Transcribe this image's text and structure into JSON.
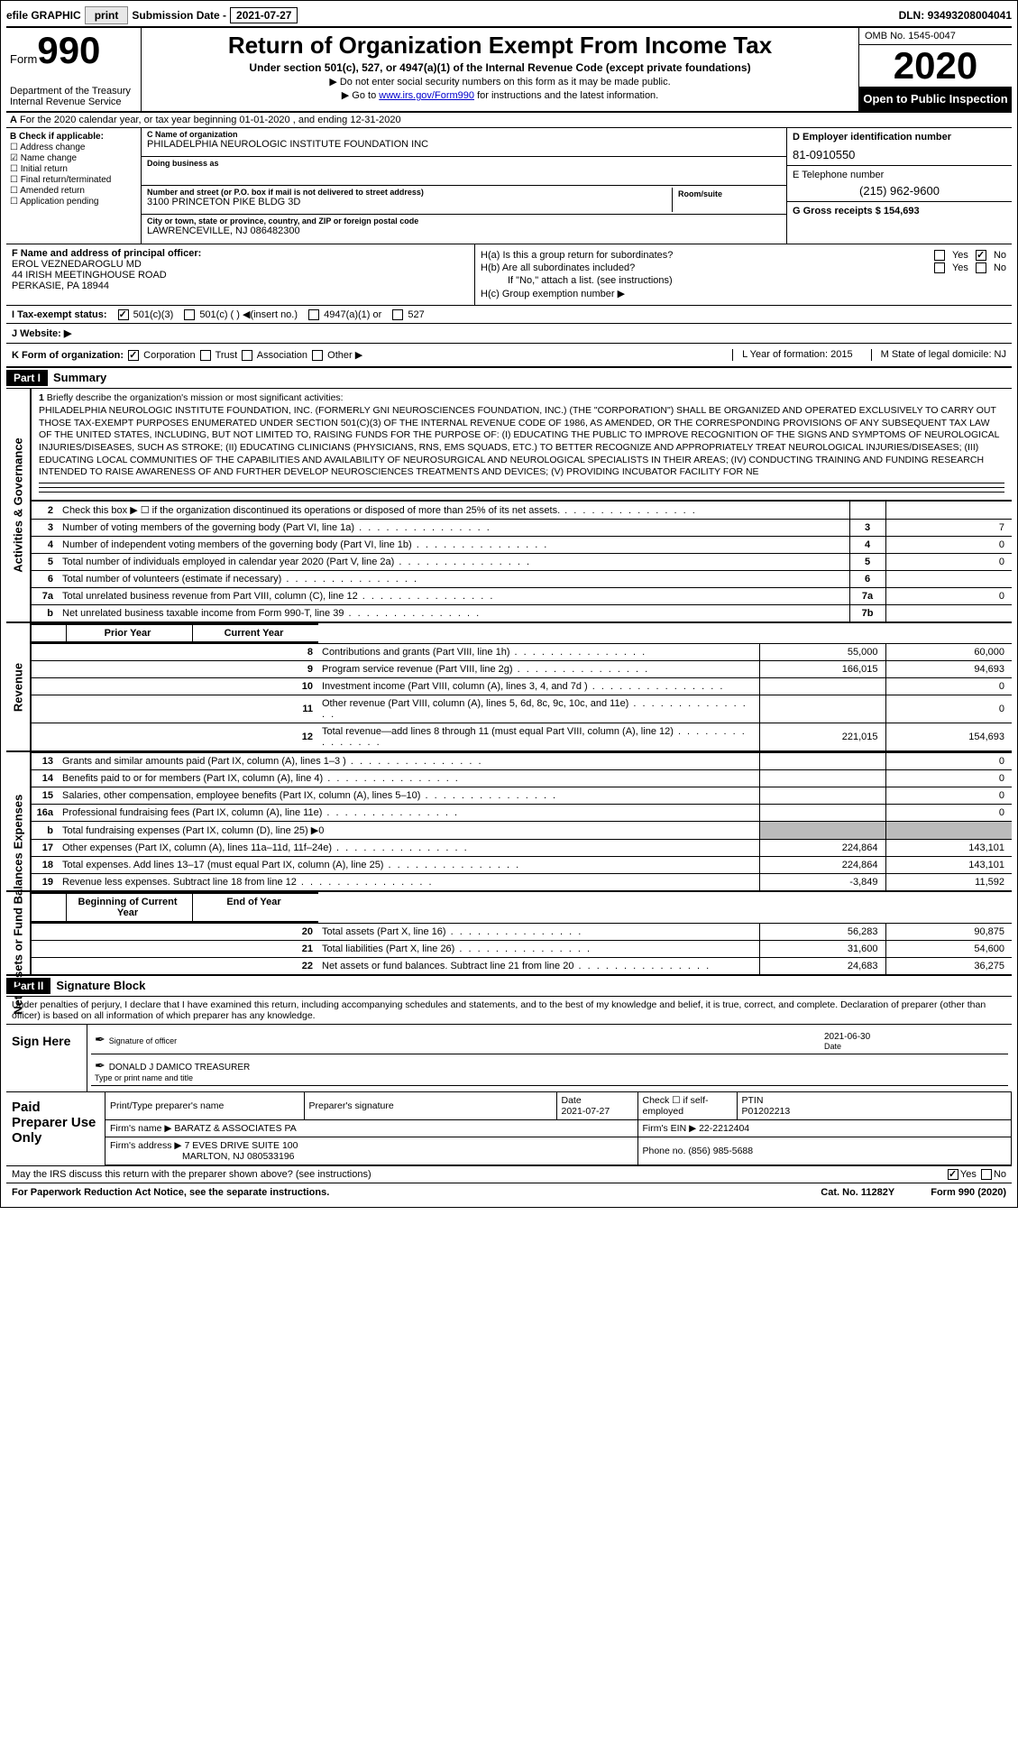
{
  "topbar": {
    "efile": "efile GRAPHIC",
    "print": "print",
    "submit_lbl": "Submission Date - ",
    "submit_date": "2021-07-27",
    "dln_lbl": "DLN: ",
    "dln": "93493208004041"
  },
  "header": {
    "form_word": "Form",
    "form_num": "990",
    "dept": "Department of the Treasury\nInternal Revenue Service",
    "title": "Return of Organization Exempt From Income Tax",
    "subtitle": "Under section 501(c), 527, or 4947(a)(1) of the Internal Revenue Code (except private foundations)",
    "note1": "▶ Do not enter social security numbers on this form as it may be made public.",
    "note2_pre": "▶ Go to ",
    "note2_link": "www.irs.gov/Form990",
    "note2_post": " for instructions and the latest information.",
    "omb": "OMB No. 1545-0047",
    "year": "2020",
    "inspection": "Open to Public Inspection"
  },
  "rowA": {
    "text": "For the 2020 calendar year, or tax year beginning 01-01-2020   , and ending 12-31-2020",
    "prefix": "A"
  },
  "checkif": {
    "label": "B Check if applicable:",
    "items": [
      "Address change",
      "Name change",
      "Initial return",
      "Final return/terminated",
      "Amended return",
      "Application pending"
    ],
    "checked": [
      false,
      true,
      false,
      false,
      false,
      false
    ]
  },
  "org": {
    "name_lbl": "C Name of organization",
    "name": "PHILADELPHIA NEUROLOGIC INSTITUTE FOUNDATION INC",
    "dba_lbl": "Doing business as",
    "dba": "",
    "addr_lbl": "Number and street (or P.O. box if mail is not delivered to street address)",
    "room_lbl": "Room/suite",
    "addr": "3100 PRINCETON PIKE BLDG 3D",
    "city_lbl": "City or town, state or province, country, and ZIP or foreign postal code",
    "city": "LAWRENCEVILLE, NJ  086482300"
  },
  "boxD": {
    "lbl": "D Employer identification number",
    "val": "81-0910550"
  },
  "boxE": {
    "lbl": "E Telephone number",
    "val": "(215) 962-9600"
  },
  "boxG": {
    "lbl": "G Gross receipts $ ",
    "val": "154,693"
  },
  "officer": {
    "lbl": "F  Name and address of principal officer:",
    "name": "EROL VEZNEDAROGLU MD",
    "addr1": "44 IRISH MEETINGHOUSE ROAD",
    "addr2": "PERKASIE, PA  18944"
  },
  "boxH": {
    "a": "H(a)  Is this a group return for subordinates?",
    "a_yes": "Yes",
    "a_no": "No",
    "a_checked": "no",
    "b": "H(b)  Are all subordinates included?",
    "b_yes": "Yes",
    "b_no": "No",
    "b_note": "If \"No,\" attach a list. (see instructions)",
    "c": "H(c)  Group exemption number ▶"
  },
  "tax": {
    "lbl": "I  Tax-exempt status:",
    "opts": [
      "501(c)(3)",
      "501(c) (  ) ◀(insert no.)",
      "4947(a)(1) or",
      "527"
    ],
    "checked": 0
  },
  "website": {
    "lbl": "J  Website: ▶"
  },
  "kform": {
    "lbl": "K Form of organization:",
    "opts": [
      "Corporation",
      "Trust",
      "Association",
      "Other ▶"
    ],
    "checked": 0,
    "L": "L Year of formation: 2015",
    "M": "M State of legal domicile: NJ"
  },
  "part1": {
    "label": "Part I",
    "title": "Summary"
  },
  "mission": {
    "num": "1",
    "lbl": "Briefly describe the organization's mission or most significant activities:",
    "text": "PHILADELPHIA NEUROLOGIC INSTITUTE FOUNDATION, INC. (FORMERLY GNI NEUROSCIENCES FOUNDATION, INC.) (THE \"CORPORATION\") SHALL BE ORGANIZED AND OPERATED EXCLUSIVELY TO CARRY OUT THOSE TAX-EXEMPT PURPOSES ENUMERATED UNDER SECTION 501(C)(3) OF THE INTERNAL REVENUE CODE OF 1986, AS AMENDED, OR THE CORRESPONDING PROVISIONS OF ANY SUBSEQUENT TAX LAW OF THE UNITED STATES, INCLUDING, BUT NOT LIMITED TO, RAISING FUNDS FOR THE PURPOSE OF: (I) EDUCATING THE PUBLIC TO IMPROVE RECOGNITION OF THE SIGNS AND SYMPTOMS OF NEUROLOGICAL INJURIES/DISEASES, SUCH AS STROKE; (II) EDUCATING CLINICIANS (PHYSICIANS, RNS, EMS SQUADS, ETC.) TO BETTER RECOGNIZE AND APPROPRIATELY TREAT NEUROLOGICAL INJURIES/DISEASES; (III) EDUCATING LOCAL COMMUNITIES OF THE CAPABILITIES AND AVAILABILITY OF NEUROSURGICAL AND NEUROLOGICAL SPECIALISTS IN THEIR AREAS; (IV) CONDUCTING TRAINING AND FUNDING RESEARCH INTENDED TO RAISE AWARENESS OF AND FURTHER DEVELOP NEUROSCIENCES TREATMENTS AND DEVICES; (V) PROVIDING INCUBATOR FACILITY FOR NE"
  },
  "summary_rows": [
    {
      "n": "2",
      "t": "Check this box ▶ ☐ if the organization discontinued its operations or disposed of more than 25% of its net assets.",
      "box": "",
      "v": ""
    },
    {
      "n": "3",
      "t": "Number of voting members of the governing body (Part VI, line 1a)",
      "box": "3",
      "v": "7"
    },
    {
      "n": "4",
      "t": "Number of independent voting members of the governing body (Part VI, line 1b)",
      "box": "4",
      "v": "0"
    },
    {
      "n": "5",
      "t": "Total number of individuals employed in calendar year 2020 (Part V, line 2a)",
      "box": "5",
      "v": "0"
    },
    {
      "n": "6",
      "t": "Total number of volunteers (estimate if necessary)",
      "box": "6",
      "v": ""
    },
    {
      "n": "7a",
      "t": "Total unrelated business revenue from Part VIII, column (C), line 12",
      "box": "7a",
      "v": "0"
    },
    {
      "n": "b",
      "t": "Net unrelated business taxable income from Form 990-T, line 39",
      "box": "7b",
      "v": ""
    }
  ],
  "revenue": {
    "hdr_prior": "Prior Year",
    "hdr_curr": "Current Year",
    "rows": [
      {
        "n": "8",
        "t": "Contributions and grants (Part VIII, line 1h)",
        "p": "55,000",
        "c": "60,000"
      },
      {
        "n": "9",
        "t": "Program service revenue (Part VIII, line 2g)",
        "p": "166,015",
        "c": "94,693"
      },
      {
        "n": "10",
        "t": "Investment income (Part VIII, column (A), lines 3, 4, and 7d )",
        "p": "",
        "c": "0"
      },
      {
        "n": "11",
        "t": "Other revenue (Part VIII, column (A), lines 5, 6d, 8c, 9c, 10c, and 11e)",
        "p": "",
        "c": "0"
      },
      {
        "n": "12",
        "t": "Total revenue—add lines 8 through 11 (must equal Part VIII, column (A), line 12)",
        "p": "221,015",
        "c": "154,693"
      }
    ]
  },
  "expenses": {
    "rows": [
      {
        "n": "13",
        "t": "Grants and similar amounts paid (Part IX, column (A), lines 1–3 )",
        "p": "",
        "c": "0"
      },
      {
        "n": "14",
        "t": "Benefits paid to or for members (Part IX, column (A), line 4)",
        "p": "",
        "c": "0"
      },
      {
        "n": "15",
        "t": "Salaries, other compensation, employee benefits (Part IX, column (A), lines 5–10)",
        "p": "",
        "c": "0"
      },
      {
        "n": "16a",
        "t": "Professional fundraising fees (Part IX, column (A), line 11e)",
        "p": "",
        "c": "0"
      },
      {
        "n": "b",
        "t": "Total fundraising expenses (Part IX, column (D), line 25) ▶0",
        "p": "grey",
        "c": "grey"
      },
      {
        "n": "17",
        "t": "Other expenses (Part IX, column (A), lines 11a–11d, 11f–24e)",
        "p": "224,864",
        "c": "143,101"
      },
      {
        "n": "18",
        "t": "Total expenses. Add lines 13–17 (must equal Part IX, column (A), line 25)",
        "p": "224,864",
        "c": "143,101"
      },
      {
        "n": "19",
        "t": "Revenue less expenses. Subtract line 18 from line 12",
        "p": "-3,849",
        "c": "11,592"
      }
    ]
  },
  "netassets": {
    "hdr_b": "Beginning of Current Year",
    "hdr_e": "End of Year",
    "rows": [
      {
        "n": "20",
        "t": "Total assets (Part X, line 16)",
        "p": "56,283",
        "c": "90,875"
      },
      {
        "n": "21",
        "t": "Total liabilities (Part X, line 26)",
        "p": "31,600",
        "c": "54,600"
      },
      {
        "n": "22",
        "t": "Net assets or fund balances. Subtract line 21 from line 20",
        "p": "24,683",
        "c": "36,275"
      }
    ]
  },
  "part2": {
    "label": "Part II",
    "title": "Signature Block"
  },
  "sig": {
    "penalties": "Under penalties of perjury, I declare that I have examined this return, including accompanying schedules and statements, and to the best of my knowledge and belief, it is true, correct, and complete. Declaration of preparer (other than officer) is based on all information of which preparer has any knowledge.",
    "sign_here": "Sign Here",
    "sig_officer": "Signature of officer",
    "date_lbl": "Date",
    "date": "2021-06-30",
    "name": "DONALD J DAMICO  TREASURER",
    "name_lbl": "Type or print name and title"
  },
  "paid": {
    "lbl": "Paid Preparer Use Only",
    "r1": {
      "a": "Print/Type preparer's name",
      "b": "Preparer's signature",
      "c": "Date",
      "cval": "2021-07-27",
      "d": "Check ☐ if self-employed",
      "e": "PTIN",
      "eval": "P01202213"
    },
    "r2": {
      "a": "Firm's name      ▶",
      "aval": "BARATZ & ASSOCIATES PA",
      "b": "Firm's EIN ▶",
      "bval": "22-2212404"
    },
    "r3": {
      "a": "Firm's address ▶",
      "aval": "7 EVES DRIVE SUITE 100",
      "b": "Phone no.",
      "bval": "(856) 985-5688"
    },
    "r3b": "MARLTON, NJ  080533196"
  },
  "discuss": {
    "q": "May the IRS discuss this return with the preparer shown above? (see instructions)",
    "yes": "Yes",
    "no": "No"
  },
  "footer": {
    "a": "For Paperwork Reduction Act Notice, see the separate instructions.",
    "b": "Cat. No. 11282Y",
    "c": "Form 990 (2020)"
  },
  "side": {
    "s1": "Activities & Governance",
    "s2": "Revenue",
    "s3": "Expenses",
    "s4": "Net Assets or Fund Balances"
  }
}
